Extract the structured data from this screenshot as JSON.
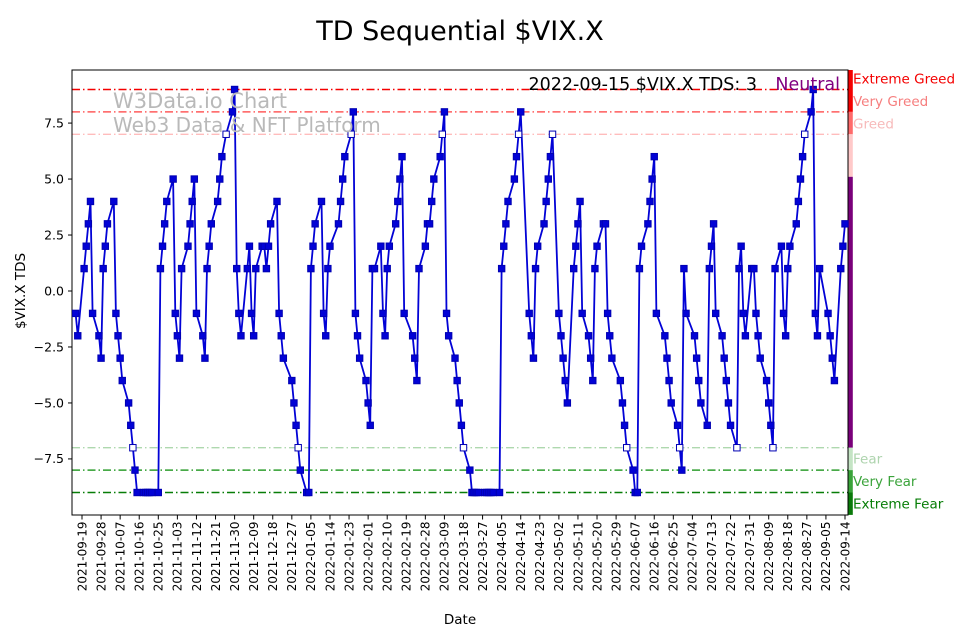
{
  "window": {
    "title": "TD Sequential $VIX.X"
  },
  "annotation": {
    "label": "2022-09-15 $VIX.X TDS: 3",
    "status": "Neutral",
    "status_color": "#800080"
  },
  "watermark": {
    "line1": "W3Data.io Chart",
    "line2": "Web3 Data & NFT Platform",
    "color": "#b9b9b9"
  },
  "axes": {
    "x_label": "Date",
    "y_label": "$VIX.X TDS"
  },
  "chart_data": {
    "type": "line",
    "title": "TD Sequential $VIX.X",
    "xlabel": "Date",
    "ylabel": "$VIX.X TDS",
    "ylim": [
      -10,
      9.9
    ],
    "grid": false,
    "line_color": "#0202d6",
    "marker": "square",
    "marker_color": "#0202d6",
    "yticks": [
      {
        "value": 7.5,
        "label": "7.5"
      },
      {
        "value": 5.0,
        "label": "5.0"
      },
      {
        "value": 2.5,
        "label": "2.5"
      },
      {
        "value": 0.0,
        "label": "0.0"
      },
      {
        "value": -2.5,
        "label": "−2.5"
      },
      {
        "value": -5.0,
        "label": "−5.0"
      },
      {
        "value": -7.5,
        "label": "−7.5"
      }
    ],
    "xticks": [
      "2021-09-19",
      "2021-09-28",
      "2021-10-07",
      "2021-10-16",
      "2021-10-25",
      "2021-11-03",
      "2021-11-12",
      "2021-11-21",
      "2021-11-30",
      "2021-12-09",
      "2021-12-18",
      "2021-12-27",
      "2022-01-05",
      "2022-01-14",
      "2022-01-23",
      "2022-02-01",
      "2022-02-10",
      "2022-02-19",
      "2022-02-28",
      "2022-03-09",
      "2022-03-18",
      "2022-03-27",
      "2022-04-05",
      "2022-04-14",
      "2022-04-23",
      "2022-05-02",
      "2022-05-11",
      "2022-05-20",
      "2022-05-29",
      "2022-06-07",
      "2022-06-16",
      "2022-06-25",
      "2022-07-04",
      "2022-07-13",
      "2022-07-22",
      "2022-07-31",
      "2022-08-09",
      "2022-08-18",
      "2022-08-27",
      "2022-09-05",
      "2022-09-14"
    ],
    "bands": [
      {
        "value": 9,
        "label": "Extreme Greed",
        "line_color": "#f40000",
        "label_color": "#f40000",
        "side": "top"
      },
      {
        "value": 8,
        "label": "Very Greed",
        "line_color": "#ff5c5c",
        "label_color": "#f67d7d",
        "side": "top"
      },
      {
        "value": 7,
        "label": "Greed",
        "line_color": "#ffbcbc",
        "label_color": "#f7baba",
        "side": "top"
      },
      {
        "value": -7,
        "label": "Fear",
        "line_color": "#aed8ae",
        "label_color": "#aed4ae",
        "side": "bottom"
      },
      {
        "value": -8,
        "label": "Very Fear",
        "line_color": "#2e9e2e",
        "label_color": "#3aa33a",
        "side": "bottom"
      },
      {
        "value": -9,
        "label": "Extreme Fear",
        "line_color": "#077d07",
        "label_color": "#067d06",
        "side": "bottom"
      }
    ],
    "right_bar": [
      {
        "from": 9.87,
        "to": 8,
        "color": "#f40000"
      },
      {
        "from": 8,
        "to": 7,
        "color": "#ff6a6a"
      },
      {
        "from": 7,
        "to": 5.1,
        "color": "#ffc9c9"
      },
      {
        "from": 5.1,
        "to": -7,
        "color": "#7a007a"
      },
      {
        "from": -7,
        "to": -8,
        "color": "#c4e4c4"
      },
      {
        "from": -8,
        "to": -9,
        "color": "#39a339"
      },
      {
        "from": -9,
        "to": -10,
        "color": "#0a7a0a"
      }
    ],
    "points": [
      [
        "2021-09-16",
        -1
      ],
      [
        "2021-09-17",
        -2
      ],
      [
        "2021-09-20",
        1
      ],
      [
        "2021-09-21",
        2
      ],
      [
        "2021-09-22",
        3
      ],
      [
        "2021-09-23",
        4
      ],
      [
        "2021-09-24",
        -1
      ],
      [
        "2021-09-27",
        -2
      ],
      [
        "2021-09-28",
        -3
      ],
      [
        "2021-09-29",
        1
      ],
      [
        "2021-09-30",
        2
      ],
      [
        "2021-10-01",
        3
      ],
      [
        "2021-10-04",
        4
      ],
      [
        "2021-10-05",
        -1
      ],
      [
        "2021-10-06",
        -2
      ],
      [
        "2021-10-07",
        -3
      ],
      [
        "2021-10-08",
        -4
      ],
      [
        "2021-10-11",
        -5
      ],
      [
        "2021-10-12",
        -6
      ],
      [
        "2021-10-13",
        -7
      ],
      [
        "2021-10-14",
        -8
      ],
      [
        "2021-10-15",
        -9
      ],
      [
        "2021-10-18",
        -9
      ],
      [
        "2021-10-19",
        -9
      ],
      [
        "2021-10-20",
        -9
      ],
      [
        "2021-10-21",
        -9
      ],
      [
        "2021-10-22",
        -9
      ],
      [
        "2021-10-25",
        -9
      ],
      [
        "2021-10-26",
        1
      ],
      [
        "2021-10-27",
        2
      ],
      [
        "2021-10-28",
        3
      ],
      [
        "2021-10-29",
        4
      ],
      [
        "2021-11-01",
        5
      ],
      [
        "2021-11-02",
        -1
      ],
      [
        "2021-11-03",
        -2
      ],
      [
        "2021-11-04",
        -3
      ],
      [
        "2021-11-05",
        1
      ],
      [
        "2021-11-08",
        2
      ],
      [
        "2021-11-09",
        3
      ],
      [
        "2021-11-10",
        4
      ],
      [
        "2021-11-11",
        5
      ],
      [
        "2021-11-12",
        -1
      ],
      [
        "2021-11-15",
        -2
      ],
      [
        "2021-11-16",
        -3
      ],
      [
        "2021-11-17",
        1
      ],
      [
        "2021-11-18",
        2
      ],
      [
        "2021-11-19",
        3
      ],
      [
        "2021-11-22",
        4
      ],
      [
        "2021-11-23",
        5
      ],
      [
        "2021-11-24",
        6
      ],
      [
        "2021-11-26",
        7
      ],
      [
        "2021-11-29",
        8
      ],
      [
        "2021-11-30",
        9
      ],
      [
        "2021-12-01",
        1
      ],
      [
        "2021-12-02",
        -1
      ],
      [
        "2021-12-03",
        -2
      ],
      [
        "2021-12-06",
        1
      ],
      [
        "2021-12-07",
        2
      ],
      [
        "2021-12-08",
        -1
      ],
      [
        "2021-12-09",
        -2
      ],
      [
        "2021-12-10",
        1
      ],
      [
        "2021-12-13",
        2
      ],
      [
        "2021-12-14",
        2
      ],
      [
        "2021-12-15",
        1
      ],
      [
        "2021-12-16",
        2
      ],
      [
        "2021-12-17",
        3
      ],
      [
        "2021-12-20",
        4
      ],
      [
        "2021-12-21",
        -1
      ],
      [
        "2021-12-22",
        -2
      ],
      [
        "2021-12-23",
        -3
      ],
      [
        "2021-12-27",
        -4
      ],
      [
        "2021-12-28",
        -5
      ],
      [
        "2021-12-29",
        -6
      ],
      [
        "2021-12-30",
        -7
      ],
      [
        "2021-12-31",
        -8
      ],
      [
        "2022-01-03",
        -9
      ],
      [
        "2022-01-04",
        -9
      ],
      [
        "2022-01-05",
        1
      ],
      [
        "2022-01-06",
        2
      ],
      [
        "2022-01-07",
        3
      ],
      [
        "2022-01-10",
        4
      ],
      [
        "2022-01-11",
        -1
      ],
      [
        "2022-01-12",
        -2
      ],
      [
        "2022-01-13",
        1
      ],
      [
        "2022-01-14",
        2
      ],
      [
        "2022-01-18",
        3
      ],
      [
        "2022-01-19",
        4
      ],
      [
        "2022-01-20",
        5
      ],
      [
        "2022-01-21",
        6
      ],
      [
        "2022-01-24",
        7
      ],
      [
        "2022-01-25",
        8
      ],
      [
        "2022-01-26",
        -1
      ],
      [
        "2022-01-27",
        -2
      ],
      [
        "2022-01-28",
        -3
      ],
      [
        "2022-01-31",
        -4
      ],
      [
        "2022-02-01",
        -5
      ],
      [
        "2022-02-02",
        -6
      ],
      [
        "2022-02-03",
        1
      ],
      [
        "2022-02-04",
        1
      ],
      [
        "2022-02-07",
        2
      ],
      [
        "2022-02-08",
        -1
      ],
      [
        "2022-02-09",
        -2
      ],
      [
        "2022-02-10",
        1
      ],
      [
        "2022-02-11",
        2
      ],
      [
        "2022-02-14",
        3
      ],
      [
        "2022-02-15",
        4
      ],
      [
        "2022-02-16",
        5
      ],
      [
        "2022-02-17",
        6
      ],
      [
        "2022-02-18",
        -1
      ],
      [
        "2022-02-22",
        -2
      ],
      [
        "2022-02-23",
        -3
      ],
      [
        "2022-02-24",
        -4
      ],
      [
        "2022-02-25",
        1
      ],
      [
        "2022-02-28",
        2
      ],
      [
        "2022-03-01",
        3
      ],
      [
        "2022-03-02",
        3
      ],
      [
        "2022-03-03",
        4
      ],
      [
        "2022-03-04",
        5
      ],
      [
        "2022-03-07",
        6
      ],
      [
        "2022-03-08",
        7
      ],
      [
        "2022-03-09",
        8
      ],
      [
        "2022-03-10",
        -1
      ],
      [
        "2022-03-11",
        -2
      ],
      [
        "2022-03-14",
        -3
      ],
      [
        "2022-03-15",
        -4
      ],
      [
        "2022-03-16",
        -5
      ],
      [
        "2022-03-17",
        -6
      ],
      [
        "2022-03-18",
        -7
      ],
      [
        "2022-03-21",
        -8
      ],
      [
        "2022-03-22",
        -9
      ],
      [
        "2022-03-23",
        -9
      ],
      [
        "2022-03-24",
        -9
      ],
      [
        "2022-03-25",
        -9
      ],
      [
        "2022-03-28",
        -9
      ],
      [
        "2022-03-29",
        -9
      ],
      [
        "2022-03-30",
        -9
      ],
      [
        "2022-03-31",
        -9
      ],
      [
        "2022-04-01",
        -9
      ],
      [
        "2022-04-04",
        -9
      ],
      [
        "2022-04-05",
        1
      ],
      [
        "2022-04-06",
        2
      ],
      [
        "2022-04-07",
        3
      ],
      [
        "2022-04-08",
        4
      ],
      [
        "2022-04-11",
        5
      ],
      [
        "2022-04-12",
        6
      ],
      [
        "2022-04-13",
        7
      ],
      [
        "2022-04-14",
        8
      ],
      [
        "2022-04-18",
        -1
      ],
      [
        "2022-04-19",
        -2
      ],
      [
        "2022-04-20",
        -3
      ],
      [
        "2022-04-21",
        1
      ],
      [
        "2022-04-22",
        2
      ],
      [
        "2022-04-25",
        3
      ],
      [
        "2022-04-26",
        4
      ],
      [
        "2022-04-27",
        5
      ],
      [
        "2022-04-28",
        6
      ],
      [
        "2022-04-29",
        7
      ],
      [
        "2022-05-02",
        -1
      ],
      [
        "2022-05-03",
        -2
      ],
      [
        "2022-05-04",
        -3
      ],
      [
        "2022-05-05",
        -4
      ],
      [
        "2022-05-06",
        -5
      ],
      [
        "2022-05-09",
        1
      ],
      [
        "2022-05-10",
        2
      ],
      [
        "2022-05-11",
        3
      ],
      [
        "2022-05-12",
        4
      ],
      [
        "2022-05-13",
        -1
      ],
      [
        "2022-05-16",
        -2
      ],
      [
        "2022-05-17",
        -3
      ],
      [
        "2022-05-18",
        -4
      ],
      [
        "2022-05-19",
        1
      ],
      [
        "2022-05-20",
        2
      ],
      [
        "2022-05-23",
        3
      ],
      [
        "2022-05-24",
        3
      ],
      [
        "2022-05-25",
        -1
      ],
      [
        "2022-05-26",
        -2
      ],
      [
        "2022-05-27",
        -3
      ],
      [
        "2022-05-31",
        -4
      ],
      [
        "2022-06-01",
        -5
      ],
      [
        "2022-06-02",
        -6
      ],
      [
        "2022-06-03",
        -7
      ],
      [
        "2022-06-06",
        -8
      ],
      [
        "2022-06-07",
        -9
      ],
      [
        "2022-06-08",
        -9
      ],
      [
        "2022-06-09",
        1
      ],
      [
        "2022-06-10",
        2
      ],
      [
        "2022-06-13",
        3
      ],
      [
        "2022-06-14",
        4
      ],
      [
        "2022-06-15",
        5
      ],
      [
        "2022-06-16",
        6
      ],
      [
        "2022-06-17",
        -1
      ],
      [
        "2022-06-21",
        -2
      ],
      [
        "2022-06-22",
        -3
      ],
      [
        "2022-06-23",
        -4
      ],
      [
        "2022-06-24",
        -5
      ],
      [
        "2022-06-27",
        -6
      ],
      [
        "2022-06-28",
        -7
      ],
      [
        "2022-06-29",
        -8
      ],
      [
        "2022-06-30",
        1
      ],
      [
        "2022-07-01",
        -1
      ],
      [
        "2022-07-05",
        -2
      ],
      [
        "2022-07-06",
        -3
      ],
      [
        "2022-07-07",
        -4
      ],
      [
        "2022-07-08",
        -5
      ],
      [
        "2022-07-11",
        -6
      ],
      [
        "2022-07-12",
        1
      ],
      [
        "2022-07-13",
        2
      ],
      [
        "2022-07-14",
        3
      ],
      [
        "2022-07-15",
        -1
      ],
      [
        "2022-07-18",
        -2
      ],
      [
        "2022-07-19",
        -3
      ],
      [
        "2022-07-20",
        -4
      ],
      [
        "2022-07-21",
        -5
      ],
      [
        "2022-07-22",
        -6
      ],
      [
        "2022-07-25",
        -7
      ],
      [
        "2022-07-26",
        1
      ],
      [
        "2022-07-27",
        2
      ],
      [
        "2022-07-28",
        -1
      ],
      [
        "2022-07-29",
        -2
      ],
      [
        "2022-08-01",
        1
      ],
      [
        "2022-08-02",
        1
      ],
      [
        "2022-08-03",
        -1
      ],
      [
        "2022-08-04",
        -2
      ],
      [
        "2022-08-05",
        -3
      ],
      [
        "2022-08-08",
        -4
      ],
      [
        "2022-08-09",
        -5
      ],
      [
        "2022-08-10",
        -6
      ],
      [
        "2022-08-11",
        -7
      ],
      [
        "2022-08-12",
        1
      ],
      [
        "2022-08-15",
        2
      ],
      [
        "2022-08-16",
        -1
      ],
      [
        "2022-08-17",
        -2
      ],
      [
        "2022-08-18",
        1
      ],
      [
        "2022-08-19",
        2
      ],
      [
        "2022-08-22",
        3
      ],
      [
        "2022-08-23",
        4
      ],
      [
        "2022-08-24",
        5
      ],
      [
        "2022-08-25",
        6
      ],
      [
        "2022-08-26",
        7
      ],
      [
        "2022-08-29",
        8
      ],
      [
        "2022-08-30",
        9
      ],
      [
        "2022-08-31",
        -1
      ],
      [
        "2022-09-01",
        -2
      ],
      [
        "2022-09-02",
        1
      ],
      [
        "2022-09-06",
        -1
      ],
      [
        "2022-09-07",
        -2
      ],
      [
        "2022-09-08",
        -3
      ],
      [
        "2022-09-09",
        -4
      ],
      [
        "2022-09-12",
        1
      ],
      [
        "2022-09-13",
        2
      ],
      [
        "2022-09-14",
        3
      ]
    ]
  }
}
